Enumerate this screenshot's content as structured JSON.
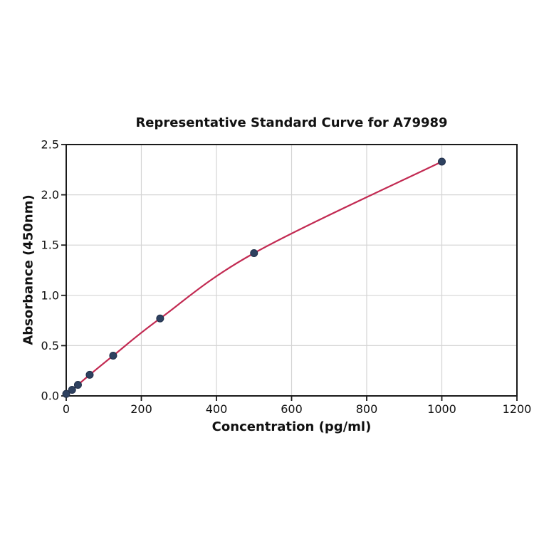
{
  "figure": {
    "background": "#ffffff"
  },
  "chart_data": {
    "type": "line",
    "title": "Representative Standard Curve for A79989",
    "xlabel": "Concentration (pg/ml)",
    "ylabel": "Absorbance (450nm)",
    "x": [
      0,
      15.6,
      31.2,
      62.5,
      125,
      250,
      500,
      1000
    ],
    "y": [
      0.02,
      0.06,
      0.11,
      0.21,
      0.4,
      0.77,
      1.42,
      2.33
    ],
    "xlim": [
      0,
      1200
    ],
    "ylim": [
      0,
      2.5
    ],
    "xticks": [
      0,
      200,
      400,
      600,
      800,
      1000,
      1200
    ],
    "xtick_labels": [
      "0",
      "200",
      "400",
      "600",
      "800",
      "1000",
      "1200"
    ],
    "yticks": [
      0,
      0.5,
      1.0,
      1.5,
      2.0,
      2.5
    ],
    "ytick_labels": [
      "0.0",
      "0.5",
      "1.0",
      "1.5",
      "2.0",
      "2.5"
    ],
    "grid": true,
    "legend_position": "none",
    "marker": "circle",
    "colors": {
      "line": "#c22a52",
      "marker_fill": "#2e4160",
      "marker_edge": "#22304a",
      "grid": "#d4d4d4",
      "axis": "#1a1a1a",
      "tick_text": "#111111"
    }
  }
}
